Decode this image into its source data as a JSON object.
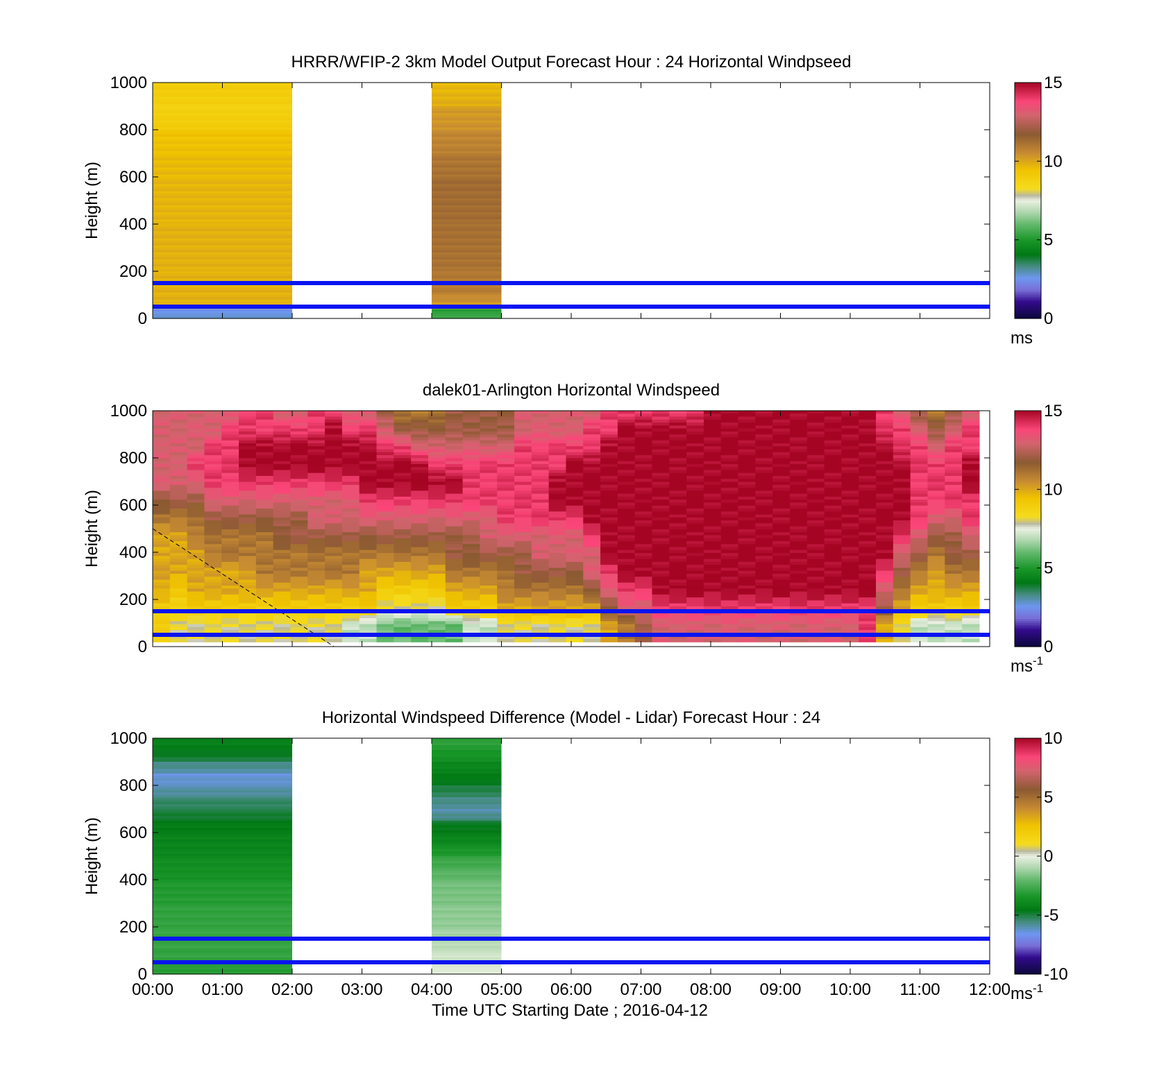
{
  "figure": {
    "xlabel": "Time UTC  Starting Date ; 2016-04-12",
    "time_ticks": [
      "00:00",
      "01:00",
      "02:00",
      "03:00",
      "04:00",
      "05:00",
      "06:00",
      "07:00",
      "08:00",
      "09:00",
      "10:00",
      "11:00",
      "12:00"
    ]
  },
  "chart_data": [
    {
      "type": "heatmap",
      "title": "HRRR/WFIP-2 3km Model Output   Forecast Hour : 24 Horizontal Windpseed",
      "ylabel": "Height (m)",
      "xlim": [
        "00:00",
        "12:00"
      ],
      "ylim": [
        0,
        1000
      ],
      "y_ticks": [
        "0",
        "200",
        "400",
        "600",
        "800",
        "1000"
      ],
      "colorbar": {
        "range": [
          0,
          15
        ],
        "ticks": [
          "0",
          "5",
          "10",
          "15"
        ],
        "unit": "ms",
        "unit_sup": ""
      },
      "reference_lines_m": [
        50,
        150
      ],
      "blocks": [
        {
          "start_hour": 0,
          "end_hour": 2,
          "profile": [
            [
              1000,
              9.0
            ],
            [
              900,
              8.8
            ],
            [
              800,
              9.4
            ],
            [
              700,
              9.6
            ],
            [
              600,
              9.7
            ],
            [
              400,
              9.8
            ],
            [
              200,
              9.8
            ],
            [
              60,
              9.8
            ],
            [
              40,
              2.5
            ],
            [
              20,
              2.8
            ]
          ]
        },
        {
          "start_hour": 4,
          "end_hour": 5,
          "profile": [
            [
              1000,
              9.6
            ],
            [
              900,
              10.2
            ],
            [
              800,
              10.6
            ],
            [
              700,
              11.0
            ],
            [
              600,
              11.3
            ],
            [
              400,
              11.2
            ],
            [
              200,
              11.0
            ],
            [
              100,
              10.6
            ],
            [
              60,
              9.8
            ],
            [
              40,
              5.2
            ],
            [
              20,
              5.5
            ]
          ]
        }
      ]
    },
    {
      "type": "heatmap",
      "title": "dalek01-Arlington  Horizontal Windspeed",
      "ylabel": "Height (m)",
      "xlim": [
        "00:00",
        "12:00"
      ],
      "ylim": [
        0,
        1000
      ],
      "y_ticks": [
        "0",
        "200",
        "400",
        "600",
        "800",
        "1000"
      ],
      "colorbar": {
        "range": [
          0,
          15
        ],
        "ticks": [
          "0",
          "5",
          "10",
          "15"
        ],
        "unit": "ms",
        "unit_sup": "-1"
      },
      "reference_lines_m": [
        50,
        150
      ],
      "dashed_line": {
        "from": [
          0.0,
          500
        ],
        "to": [
          2.6,
          0
        ]
      },
      "columns": [
        [
          13,
          13,
          13,
          13,
          13,
          12,
          11,
          10,
          10,
          10,
          10,
          9,
          9
        ],
        [
          13,
          13,
          13,
          13,
          13,
          12,
          11,
          10,
          10,
          10,
          9,
          9,
          8
        ],
        [
          13,
          13,
          13,
          14,
          13,
          12,
          11,
          11,
          10,
          10,
          10,
          9,
          8
        ],
        [
          13,
          13,
          14,
          14,
          14,
          13,
          12,
          11,
          11,
          10,
          10,
          9,
          8
        ],
        [
          13,
          14,
          14,
          14,
          14,
          13,
          12,
          11,
          11,
          10,
          10,
          9,
          8
        ],
        [
          14,
          14,
          15,
          15,
          14,
          13,
          12,
          11,
          11,
          10,
          10,
          9,
          8
        ],
        [
          14,
          14,
          15,
          15,
          14,
          13,
          12,
          11,
          11,
          11,
          10,
          9,
          8
        ],
        [
          13,
          14,
          15,
          15,
          14,
          13,
          12,
          12,
          11,
          11,
          10,
          9,
          8
        ],
        [
          13,
          14,
          15,
          15,
          14,
          13,
          12,
          12,
          11,
          11,
          10,
          9,
          8
        ],
        [
          14,
          14,
          15,
          15,
          14,
          13,
          13,
          12,
          11,
          11,
          10,
          9,
          8
        ],
        [
          14,
          15,
          15,
          15,
          14,
          13,
          13,
          12,
          11,
          11,
          10,
          9,
          8
        ],
        [
          13,
          14,
          15,
          15,
          14,
          13,
          13,
          12,
          11,
          11,
          10,
          9,
          7
        ],
        [
          13,
          14,
          15,
          15,
          15,
          14,
          13,
          12,
          11,
          10,
          10,
          9,
          7
        ],
        [
          12,
          13,
          14,
          15,
          15,
          14,
          13,
          12,
          11,
          10,
          9,
          8,
          6
        ],
        [
          11,
          12,
          14,
          15,
          15,
          14,
          13,
          12,
          11,
          10,
          9,
          8,
          6
        ],
        [
          11,
          12,
          13,
          15,
          15,
          14,
          13,
          12,
          11,
          10,
          9,
          8,
          6
        ],
        [
          11,
          12,
          13,
          14,
          15,
          14,
          13,
          12,
          11,
          10,
          9,
          8,
          6
        ],
        [
          12,
          12,
          13,
          14,
          15,
          14,
          13,
          12,
          12,
          11,
          10,
          9,
          6
        ],
        [
          12,
          12,
          13,
          14,
          14,
          14,
          13,
          12,
          12,
          11,
          10,
          9,
          7
        ],
        [
          12,
          12,
          13,
          14,
          14,
          14,
          13,
          13,
          12,
          11,
          10,
          9,
          7
        ],
        [
          12,
          12,
          13,
          14,
          14,
          14,
          14,
          13,
          12,
          11,
          11,
          10,
          8
        ],
        [
          13,
          13,
          14,
          14,
          14,
          14,
          14,
          13,
          12,
          12,
          11,
          10,
          8
        ],
        [
          13,
          13,
          14,
          14,
          14,
          14,
          14,
          13,
          13,
          12,
          11,
          10,
          8
        ],
        [
          13,
          13,
          14,
          14,
          15,
          15,
          14,
          13,
          13,
          12,
          11,
          10,
          8
        ],
        [
          13,
          13,
          14,
          15,
          15,
          15,
          14,
          13,
          13,
          12,
          11,
          10,
          8
        ],
        [
          13,
          14,
          14,
          15,
          15,
          15,
          15,
          14,
          13,
          13,
          12,
          10,
          8
        ],
        [
          14,
          14,
          15,
          15,
          15,
          15,
          15,
          15,
          15,
          14,
          13,
          12,
          10
        ],
        [
          14,
          15,
          15,
          15,
          15,
          15,
          15,
          15,
          15,
          15,
          14,
          13,
          11
        ],
        [
          14,
          15,
          15,
          15,
          15,
          15,
          15,
          15,
          15,
          15,
          14,
          13,
          12
        ],
        [
          14,
          15,
          15,
          15,
          15,
          15,
          15,
          15,
          15,
          15,
          15,
          14,
          13
        ],
        [
          14,
          15,
          15,
          15,
          15,
          15,
          15,
          15,
          15,
          15,
          15,
          14,
          13
        ],
        [
          14,
          15,
          15,
          15,
          15,
          15,
          15,
          15,
          15,
          15,
          15,
          14,
          13
        ],
        [
          15,
          15,
          15,
          15,
          15,
          15,
          15,
          15,
          15,
          15,
          15,
          14,
          13
        ],
        [
          15,
          15,
          15,
          15,
          15,
          15,
          15,
          15,
          15,
          15,
          15,
          14,
          13
        ],
        [
          15,
          15,
          15,
          15,
          15,
          15,
          15,
          15,
          15,
          15,
          15,
          14,
          13
        ],
        [
          15,
          15,
          15,
          15,
          15,
          15,
          15,
          15,
          15,
          15,
          15,
          14,
          13
        ],
        [
          15,
          15,
          15,
          15,
          15,
          15,
          15,
          15,
          15,
          15,
          15,
          14,
          13
        ],
        [
          15,
          15,
          15,
          15,
          15,
          15,
          15,
          15,
          15,
          15,
          15,
          14,
          13
        ],
        [
          15,
          15,
          15,
          15,
          15,
          15,
          15,
          15,
          15,
          15,
          15,
          14,
          13
        ],
        [
          15,
          15,
          15,
          15,
          15,
          15,
          15,
          15,
          15,
          15,
          15,
          14,
          13
        ],
        [
          15,
          15,
          15,
          15,
          15,
          15,
          15,
          15,
          15,
          15,
          15,
          14,
          13
        ],
        [
          15,
          15,
          15,
          15,
          15,
          15,
          15,
          15,
          15,
          15,
          15,
          14,
          14
        ],
        [
          14,
          14,
          15,
          15,
          15,
          15,
          15,
          15,
          15,
          14,
          13,
          12,
          10
        ],
        [
          13,
          14,
          14,
          15,
          15,
          15,
          15,
          14,
          13,
          12,
          11,
          10,
          8
        ],
        [
          12,
          13,
          14,
          14,
          14,
          14,
          14,
          13,
          12,
          11,
          10,
          9,
          7
        ],
        [
          11,
          12,
          13,
          14,
          14,
          14,
          13,
          12,
          11,
          10,
          10,
          9,
          7
        ],
        [
          12,
          13,
          14,
          14,
          14,
          14,
          13,
          12,
          12,
          11,
          10,
          9,
          7
        ],
        [
          13,
          14,
          14,
          15,
          15,
          14,
          14,
          13,
          12,
          11,
          10,
          9,
          7
        ]
      ]
    },
    {
      "type": "heatmap",
      "title": "Horizontal Windspeed Difference (Model - Lidar) Forecast Hour : 24",
      "ylabel": "Height (m)",
      "xlim": [
        "00:00",
        "12:00"
      ],
      "ylim": [
        0,
        1000
      ],
      "y_ticks": [
        "0",
        "200",
        "400",
        "600",
        "800",
        "1000"
      ],
      "colorbar": {
        "range": [
          -10,
          10
        ],
        "ticks": [
          "-10",
          "-5",
          "0",
          "5",
          "10"
        ],
        "unit": "ms",
        "unit_sup": "-1"
      },
      "reference_lines_m": [
        50,
        150
      ],
      "blocks": [
        {
          "start_hour": 0,
          "end_hour": 2,
          "profile": [
            [
              1000,
              -4.2
            ],
            [
              950,
              -4.6
            ],
            [
              900,
              -5.6
            ],
            [
              850,
              -6.4
            ],
            [
              800,
              -6.0
            ],
            [
              750,
              -5.4
            ],
            [
              700,
              -5.0
            ],
            [
              650,
              -4.5
            ],
            [
              600,
              -4.2
            ],
            [
              500,
              -3.8
            ],
            [
              400,
              -3.3
            ],
            [
              300,
              -3.0
            ],
            [
              200,
              -2.8
            ],
            [
              100,
              -2.9
            ],
            [
              40,
              -3.0
            ],
            [
              20,
              -3.1
            ]
          ]
        },
        {
          "start_hour": 4,
          "end_hour": 5,
          "profile": [
            [
              1000,
              -3.0
            ],
            [
              950,
              -3.4
            ],
            [
              900,
              -4.0
            ],
            [
              850,
              -4.4
            ],
            [
              800,
              -5.0
            ],
            [
              750,
              -5.6
            ],
            [
              700,
              -6.0
            ],
            [
              650,
              -4.8
            ],
            [
              600,
              -4.2
            ],
            [
              550,
              -3.6
            ],
            [
              500,
              -2.8
            ],
            [
              450,
              -2.3
            ],
            [
              400,
              -1.8
            ],
            [
              300,
              -1.5
            ],
            [
              200,
              -1.2
            ],
            [
              150,
              -0.9
            ],
            [
              100,
              -0.5
            ],
            [
              60,
              -0.3
            ],
            [
              40,
              -0.2
            ],
            [
              20,
              -0.1
            ]
          ]
        }
      ]
    }
  ]
}
